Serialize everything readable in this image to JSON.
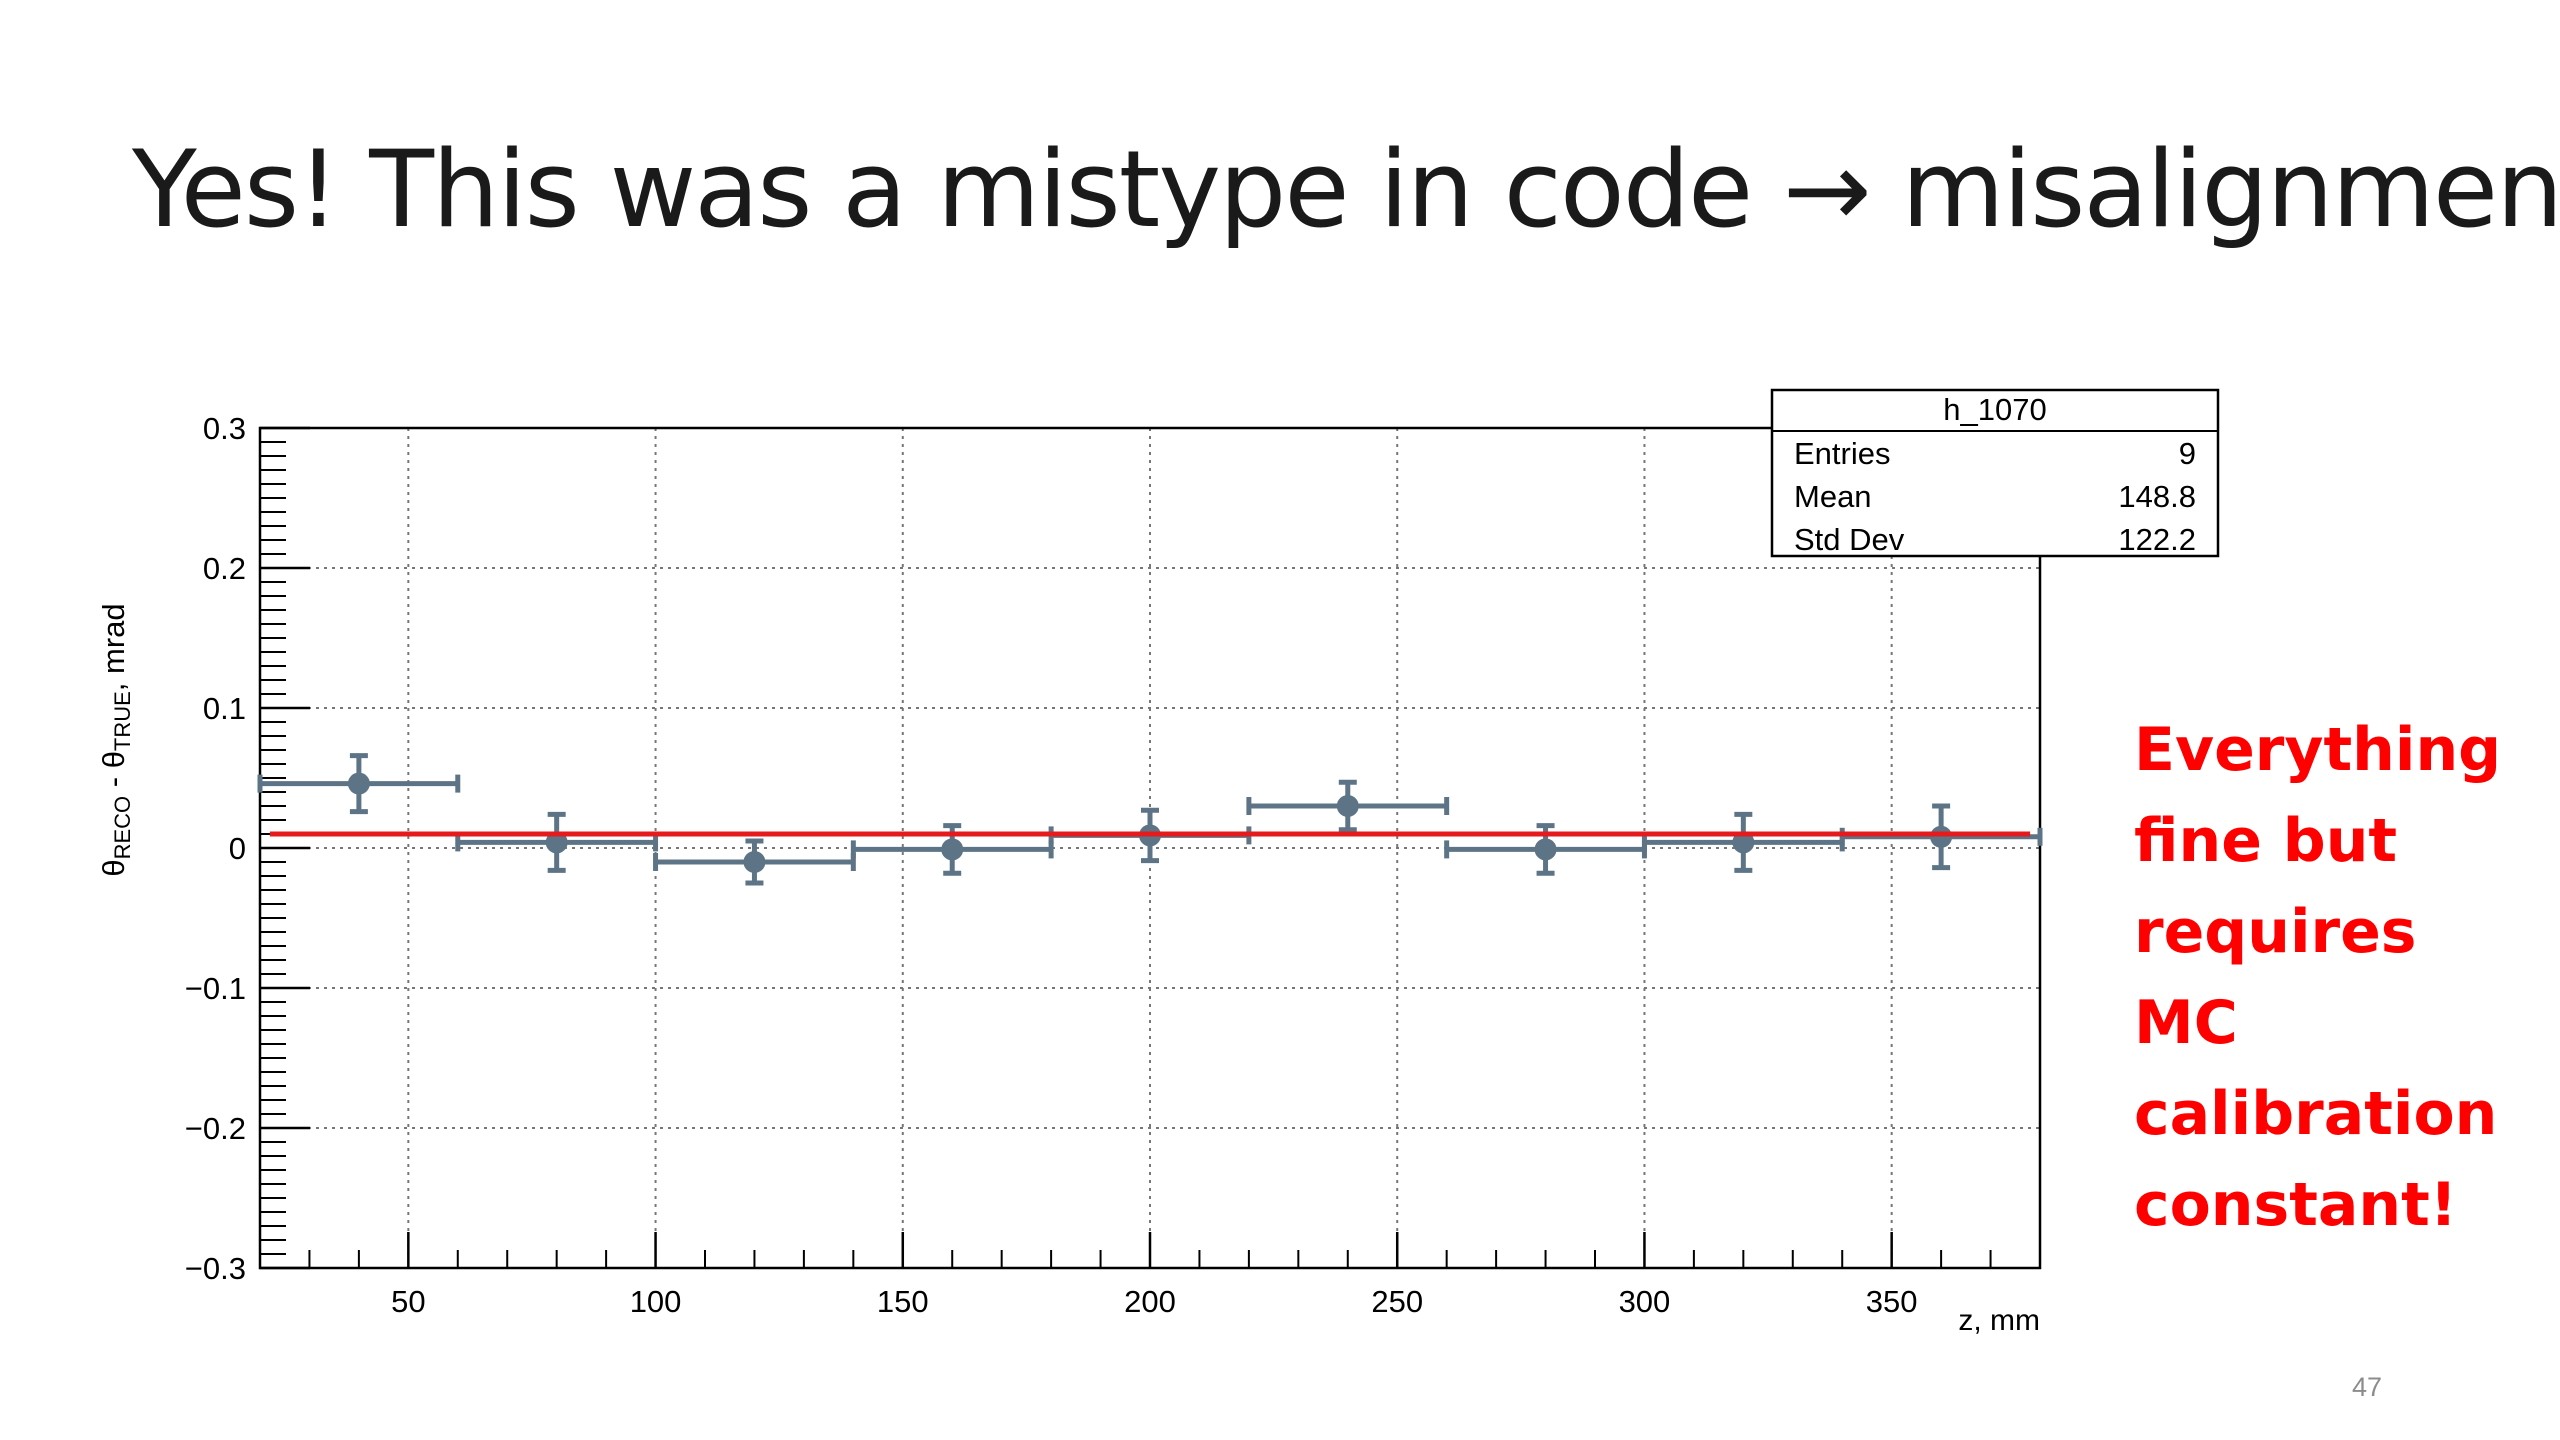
{
  "slide": {
    "title": "Yes! This was a mistype in code → misalignment",
    "note_lines": [
      "Everything",
      "fine but",
      "requires",
      "MC",
      "calibration",
      "constant!"
    ],
    "page_number": "47"
  },
  "colors": {
    "points": "#5c7486",
    "fit_line": "#e41a1c",
    "note": "#ff0000",
    "axis": "#000000"
  },
  "chart_data": {
    "type": "scatter",
    "xlabel": "z, mm",
    "ylabel": "θRECO - θTRUE, mrad",
    "ylabel_parts": {
      "theta1": "θ",
      "sub1": "RECO",
      "mid": " - θ",
      "sub2": "TRUE",
      "tail": ", mrad"
    },
    "xlim": [
      20,
      380
    ],
    "ylim": [
      -0.3,
      0.3
    ],
    "x_ticks": [
      50,
      100,
      150,
      200,
      250,
      300,
      350
    ],
    "x_tick_labels": [
      "50",
      "100",
      "150",
      "200",
      "250",
      "300",
      "350"
    ],
    "y_ticks": [
      -0.3,
      -0.2,
      -0.1,
      0,
      0.1,
      0.2,
      0.3
    ],
    "y_tick_labels": [
      "−0.3",
      "−0.2",
      "−0.1",
      "0",
      "0.1",
      "0.2",
      "0.3"
    ],
    "grid": true,
    "points": [
      {
        "x": 40,
        "y": 0.046,
        "xerr": 20,
        "yerr": 0.02
      },
      {
        "x": 80,
        "y": 0.004,
        "xerr": 20,
        "yerr": 0.02
      },
      {
        "x": 120,
        "y": -0.01,
        "xerr": 20,
        "yerr": 0.015
      },
      {
        "x": 160,
        "y": -0.001,
        "xerr": 20,
        "yerr": 0.017
      },
      {
        "x": 200,
        "y": 0.009,
        "xerr": 20,
        "yerr": 0.018
      },
      {
        "x": 240,
        "y": 0.03,
        "xerr": 20,
        "yerr": 0.017
      },
      {
        "x": 280,
        "y": -0.001,
        "xerr": 20,
        "yerr": 0.017
      },
      {
        "x": 320,
        "y": 0.004,
        "xerr": 20,
        "yerr": 0.02
      },
      {
        "x": 360,
        "y": 0.008,
        "xerr": 20,
        "yerr": 0.022
      }
    ],
    "fit_line": {
      "x": [
        22,
        378
      ],
      "y": [
        0.01,
        0.01
      ]
    },
    "stats_box": {
      "title": "h_1070",
      "rows": [
        {
          "label": "Entries",
          "value": "9"
        },
        {
          "label": "Mean",
          "value": "148.8"
        },
        {
          "label": "Std Dev",
          "value": "122.2"
        }
      ],
      "placement": "top-right"
    }
  }
}
